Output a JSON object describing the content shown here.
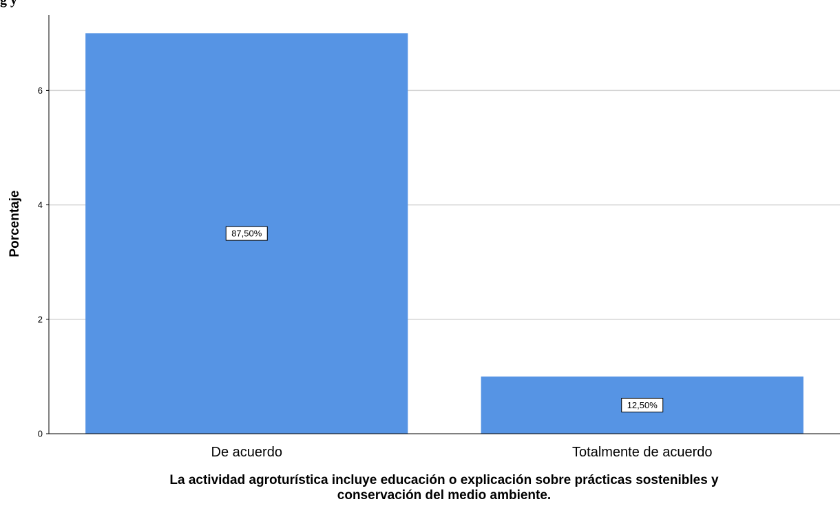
{
  "header_fragment": "g                                    y",
  "chart_data": {
    "type": "bar",
    "categories": [
      "De acuerdo",
      "Totalmente de acuerdo"
    ],
    "values": [
      7,
      1
    ],
    "data_labels": [
      "87,50%",
      "12,50%"
    ],
    "ylabel": "Porcentaje",
    "xlabel_lines": [
      "La actividad agroturística incluye educación o explicación sobre prácticas sostenibles y",
      "conservación del medio ambiente."
    ],
    "ylim": [
      0,
      7.5
    ],
    "yticks": [
      "0",
      "2",
      "4",
      "6"
    ],
    "grid": true,
    "bar_color": "#5694e4"
  }
}
